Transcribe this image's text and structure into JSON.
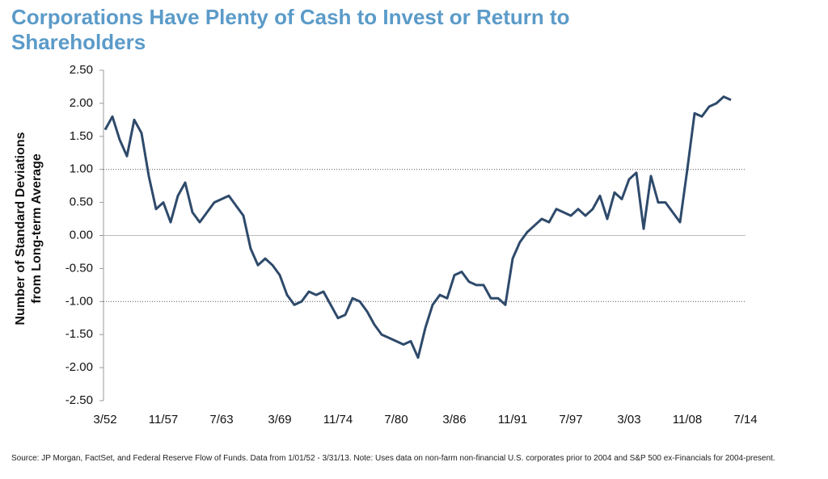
{
  "chart_data": {
    "type": "line",
    "title": "Corporations Have Plenty of Cash to Invest or Return to Shareholders",
    "ylabel": [
      "Number of Standard Deviations",
      "from Long-term Average"
    ],
    "source": "Source: JP Morgan, FactSet, and Federal Reserve Flow of Funds. Data from 1/01/52 - 3/31/13. Note: Uses data on non-farm non-financial U.S. corporates prior to 2004 and S&P 500 ex-Financials for 2004-present.",
    "color": "#2e4a6b",
    "categories": [
      "3/52",
      null,
      null,
      null,
      null,
      null,
      null,
      null,
      "11/57",
      null,
      null,
      null,
      null,
      null,
      null,
      null,
      "7/63",
      null,
      null,
      null,
      null,
      null,
      null,
      null,
      "3/69",
      null,
      null,
      null,
      null,
      null,
      null,
      null,
      "11/74",
      null,
      null,
      null,
      null,
      null,
      null,
      null,
      "7/80",
      null,
      null,
      null,
      null,
      null,
      null,
      null,
      "3/86",
      null,
      null,
      null,
      null,
      null,
      null,
      null,
      "11/91",
      null,
      null,
      null,
      null,
      null,
      null,
      null,
      "7/97",
      null,
      null,
      null,
      null,
      null,
      null,
      null,
      "3/03",
      null,
      null,
      null,
      null,
      null,
      null,
      null,
      "11/08",
      null,
      null,
      null,
      null,
      null,
      null,
      null,
      "7/14"
    ],
    "values": [
      1.6,
      1.8,
      1.45,
      1.2,
      1.75,
      1.55,
      0.9,
      0.4,
      0.5,
      0.2,
      0.6,
      0.8,
      0.35,
      0.2,
      0.35,
      0.5,
      0.55,
      0.6,
      0.45,
      0.3,
      -0.2,
      -0.45,
      -0.35,
      -0.45,
      -0.6,
      -0.9,
      -1.05,
      -1.0,
      -0.85,
      -0.9,
      -0.85,
      -1.05,
      -1.25,
      -1.2,
      -0.95,
      -1.0,
      -1.15,
      -1.35,
      -1.5,
      -1.55,
      -1.6,
      -1.65,
      -1.6,
      -1.85,
      -1.4,
      -1.05,
      -0.9,
      -0.95,
      -0.6,
      -0.55,
      -0.7,
      -0.75,
      -0.75,
      -0.95,
      -0.95,
      -1.05,
      -0.35,
      -0.1,
      0.05,
      0.15,
      0.25,
      0.2,
      0.4,
      0.35,
      0.3,
      0.4,
      0.3,
      0.4,
      0.6,
      0.25,
      0.65,
      0.55,
      0.85,
      0.95,
      0.1,
      0.9,
      0.5,
      0.5,
      0.35,
      0.2,
      1.0,
      1.85,
      1.8,
      1.95,
      2.0,
      2.1,
      2.05,
      null,
      null
    ],
    "ylim": [
      -2.5,
      2.5
    ],
    "yticks": [
      {
        "value": 2.5,
        "label": "2.50"
      },
      {
        "value": 2,
        "label": "2.00"
      },
      {
        "value": 1.5,
        "label": "1.50"
      },
      {
        "value": 1,
        "label": "1.00"
      },
      {
        "value": 0.5,
        "label": "0.50"
      },
      {
        "value": 0,
        "label": "0.00"
      },
      {
        "value": -0.5,
        "label": "-0.50"
      },
      {
        "value": -1,
        "label": "-1.00"
      },
      {
        "value": -1.5,
        "label": "-1.50"
      },
      {
        "value": -2,
        "label": "-2.00"
      },
      {
        "value": -2.5,
        "label": "-2.50"
      }
    ],
    "reference_lines": [
      1,
      -1
    ]
  }
}
